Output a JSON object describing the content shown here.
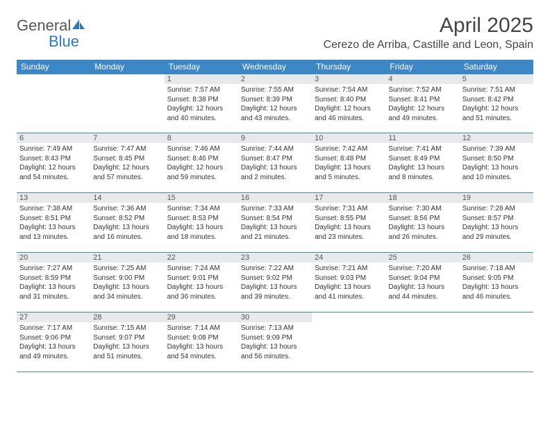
{
  "brand": {
    "part1": "General",
    "part2": "Blue"
  },
  "colors": {
    "brand_blue": "#2f79b9",
    "header_blue": "#3d87c7",
    "daynum_bg": "#e7e9eb",
    "text": "#333333",
    "title": "#444444"
  },
  "title": "April 2025",
  "location": "Cerezo de Arriba, Castille and Leon, Spain",
  "dayHeaders": [
    "Sunday",
    "Monday",
    "Tuesday",
    "Wednesday",
    "Thursday",
    "Friday",
    "Saturday"
  ],
  "weeks": [
    [
      {
        "n": "",
        "empty": true
      },
      {
        "n": "",
        "empty": true
      },
      {
        "n": "1",
        "sunrise": "Sunrise: 7:57 AM",
        "sunset": "Sunset: 8:38 PM",
        "day1": "Daylight: 12 hours",
        "day2": "and 40 minutes."
      },
      {
        "n": "2",
        "sunrise": "Sunrise: 7:55 AM",
        "sunset": "Sunset: 8:39 PM",
        "day1": "Daylight: 12 hours",
        "day2": "and 43 minutes."
      },
      {
        "n": "3",
        "sunrise": "Sunrise: 7:54 AM",
        "sunset": "Sunset: 8:40 PM",
        "day1": "Daylight: 12 hours",
        "day2": "and 46 minutes."
      },
      {
        "n": "4",
        "sunrise": "Sunrise: 7:52 AM",
        "sunset": "Sunset: 8:41 PM",
        "day1": "Daylight: 12 hours",
        "day2": "and 49 minutes."
      },
      {
        "n": "5",
        "sunrise": "Sunrise: 7:51 AM",
        "sunset": "Sunset: 8:42 PM",
        "day1": "Daylight: 12 hours",
        "day2": "and 51 minutes."
      }
    ],
    [
      {
        "n": "6",
        "sunrise": "Sunrise: 7:49 AM",
        "sunset": "Sunset: 8:43 PM",
        "day1": "Daylight: 12 hours",
        "day2": "and 54 minutes."
      },
      {
        "n": "7",
        "sunrise": "Sunrise: 7:47 AM",
        "sunset": "Sunset: 8:45 PM",
        "day1": "Daylight: 12 hours",
        "day2": "and 57 minutes."
      },
      {
        "n": "8",
        "sunrise": "Sunrise: 7:46 AM",
        "sunset": "Sunset: 8:46 PM",
        "day1": "Daylight: 12 hours",
        "day2": "and 59 minutes."
      },
      {
        "n": "9",
        "sunrise": "Sunrise: 7:44 AM",
        "sunset": "Sunset: 8:47 PM",
        "day1": "Daylight: 13 hours",
        "day2": "and 2 minutes."
      },
      {
        "n": "10",
        "sunrise": "Sunrise: 7:42 AM",
        "sunset": "Sunset: 8:48 PM",
        "day1": "Daylight: 13 hours",
        "day2": "and 5 minutes."
      },
      {
        "n": "11",
        "sunrise": "Sunrise: 7:41 AM",
        "sunset": "Sunset: 8:49 PM",
        "day1": "Daylight: 13 hours",
        "day2": "and 8 minutes."
      },
      {
        "n": "12",
        "sunrise": "Sunrise: 7:39 AM",
        "sunset": "Sunset: 8:50 PM",
        "day1": "Daylight: 13 hours",
        "day2": "and 10 minutes."
      }
    ],
    [
      {
        "n": "13",
        "sunrise": "Sunrise: 7:38 AM",
        "sunset": "Sunset: 8:51 PM",
        "day1": "Daylight: 13 hours",
        "day2": "and 13 minutes."
      },
      {
        "n": "14",
        "sunrise": "Sunrise: 7:36 AM",
        "sunset": "Sunset: 8:52 PM",
        "day1": "Daylight: 13 hours",
        "day2": "and 16 minutes."
      },
      {
        "n": "15",
        "sunrise": "Sunrise: 7:34 AM",
        "sunset": "Sunset: 8:53 PM",
        "day1": "Daylight: 13 hours",
        "day2": "and 18 minutes."
      },
      {
        "n": "16",
        "sunrise": "Sunrise: 7:33 AM",
        "sunset": "Sunset: 8:54 PM",
        "day1": "Daylight: 13 hours",
        "day2": "and 21 minutes."
      },
      {
        "n": "17",
        "sunrise": "Sunrise: 7:31 AM",
        "sunset": "Sunset: 8:55 PM",
        "day1": "Daylight: 13 hours",
        "day2": "and 23 minutes."
      },
      {
        "n": "18",
        "sunrise": "Sunrise: 7:30 AM",
        "sunset": "Sunset: 8:56 PM",
        "day1": "Daylight: 13 hours",
        "day2": "and 26 minutes."
      },
      {
        "n": "19",
        "sunrise": "Sunrise: 7:28 AM",
        "sunset": "Sunset: 8:57 PM",
        "day1": "Daylight: 13 hours",
        "day2": "and 29 minutes."
      }
    ],
    [
      {
        "n": "20",
        "sunrise": "Sunrise: 7:27 AM",
        "sunset": "Sunset: 8:59 PM",
        "day1": "Daylight: 13 hours",
        "day2": "and 31 minutes."
      },
      {
        "n": "21",
        "sunrise": "Sunrise: 7:25 AM",
        "sunset": "Sunset: 9:00 PM",
        "day1": "Daylight: 13 hours",
        "day2": "and 34 minutes."
      },
      {
        "n": "22",
        "sunrise": "Sunrise: 7:24 AM",
        "sunset": "Sunset: 9:01 PM",
        "day1": "Daylight: 13 hours",
        "day2": "and 36 minutes."
      },
      {
        "n": "23",
        "sunrise": "Sunrise: 7:22 AM",
        "sunset": "Sunset: 9:02 PM",
        "day1": "Daylight: 13 hours",
        "day2": "and 39 minutes."
      },
      {
        "n": "24",
        "sunrise": "Sunrise: 7:21 AM",
        "sunset": "Sunset: 9:03 PM",
        "day1": "Daylight: 13 hours",
        "day2": "and 41 minutes."
      },
      {
        "n": "25",
        "sunrise": "Sunrise: 7:20 AM",
        "sunset": "Sunset: 9:04 PM",
        "day1": "Daylight: 13 hours",
        "day2": "and 44 minutes."
      },
      {
        "n": "26",
        "sunrise": "Sunrise: 7:18 AM",
        "sunset": "Sunset: 9:05 PM",
        "day1": "Daylight: 13 hours",
        "day2": "and 46 minutes."
      }
    ],
    [
      {
        "n": "27",
        "sunrise": "Sunrise: 7:17 AM",
        "sunset": "Sunset: 9:06 PM",
        "day1": "Daylight: 13 hours",
        "day2": "and 49 minutes."
      },
      {
        "n": "28",
        "sunrise": "Sunrise: 7:15 AM",
        "sunset": "Sunset: 9:07 PM",
        "day1": "Daylight: 13 hours",
        "day2": "and 51 minutes."
      },
      {
        "n": "29",
        "sunrise": "Sunrise: 7:14 AM",
        "sunset": "Sunset: 9:08 PM",
        "day1": "Daylight: 13 hours",
        "day2": "and 54 minutes."
      },
      {
        "n": "30",
        "sunrise": "Sunrise: 7:13 AM",
        "sunset": "Sunset: 9:09 PM",
        "day1": "Daylight: 13 hours",
        "day2": "and 56 minutes."
      },
      {
        "n": "",
        "empty": true
      },
      {
        "n": "",
        "empty": true
      },
      {
        "n": "",
        "empty": true
      }
    ]
  ]
}
